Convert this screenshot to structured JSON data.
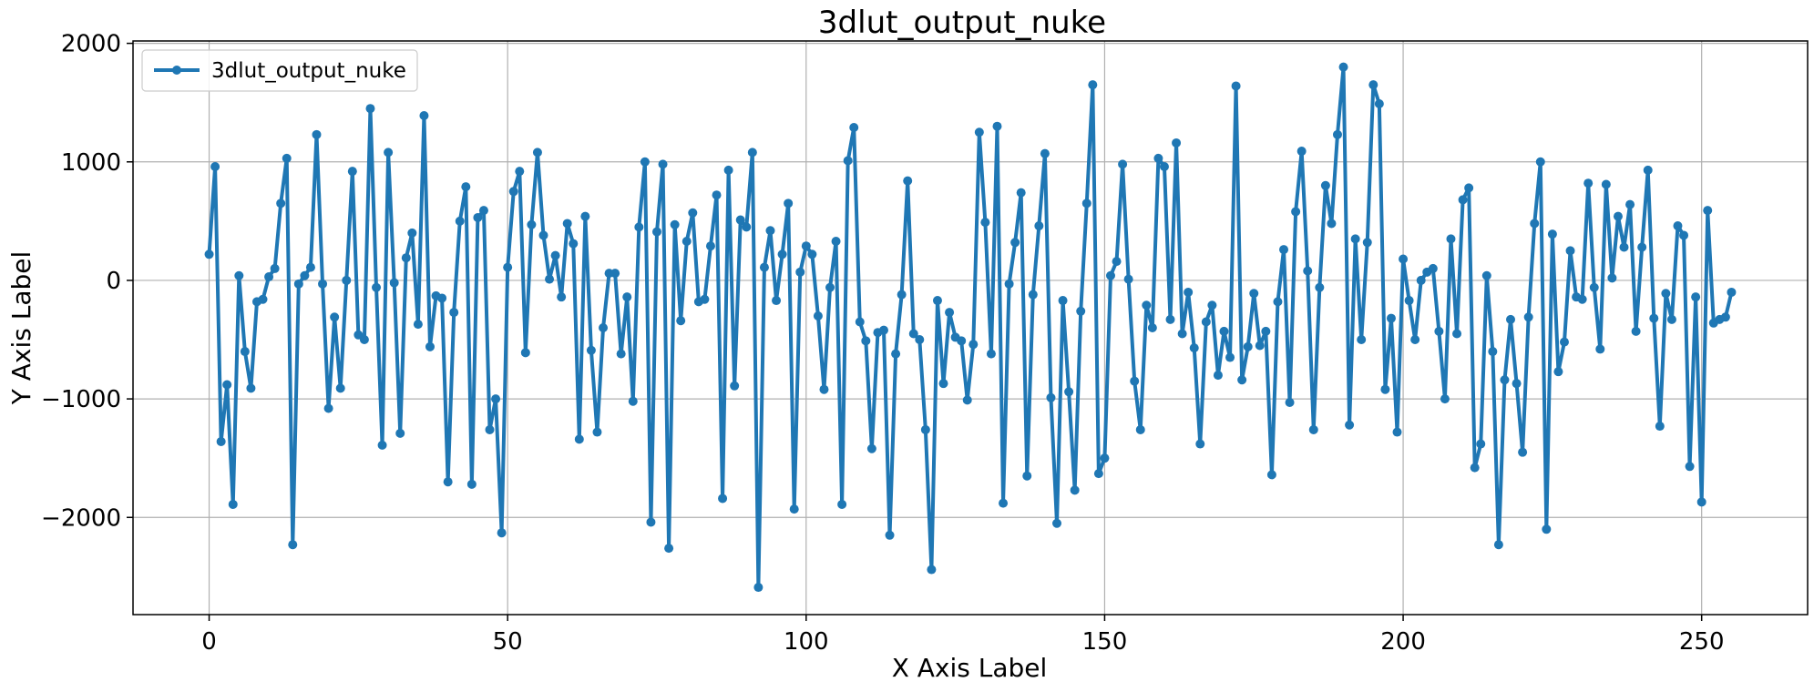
{
  "chart_data": {
    "type": "line",
    "title": "3dlut_output_nuke",
    "xlabel": "X Axis Label",
    "ylabel": "Y Axis Label",
    "xlim": [
      -12.75,
      267.75
    ],
    "ylim": [
      -2820,
      2020
    ],
    "xticks": [
      0,
      50,
      100,
      150,
      200,
      250
    ],
    "yticks": [
      -2000,
      -1000,
      0,
      1000,
      2000
    ],
    "ytick_labels": [
      "−2000",
      "−1000",
      "0",
      "1000",
      "2000"
    ],
    "grid": true,
    "legend_position": "top-left",
    "series": [
      {
        "name": "3dlut_output_nuke",
        "color": "#1f77b4",
        "marker": "circle",
        "values": [
          220,
          960,
          -1360,
          -880,
          -1890,
          40,
          -600,
          -910,
          -180,
          -160,
          30,
          100,
          650,
          1030,
          -2230,
          -30,
          40,
          110,
          1230,
          -30,
          -1080,
          -310,
          -910,
          0,
          920,
          -460,
          -500,
          1450,
          -60,
          -1390,
          1080,
          -20,
          -1290,
          190,
          400,
          -370,
          1390,
          -560,
          -130,
          -150,
          -1700,
          -270,
          500,
          790,
          -1720,
          530,
          590,
          -1260,
          -1000,
          -2130,
          110,
          750,
          920,
          -610,
          470,
          1080,
          380,
          10,
          210,
          -140,
          480,
          310,
          -1340,
          540,
          -590,
          -1280,
          -400,
          60,
          60,
          -620,
          -140,
          -1020,
          450,
          1000,
          -2040,
          410,
          980,
          -2260,
          470,
          -340,
          330,
          570,
          -180,
          -160,
          290,
          720,
          -1840,
          930,
          -890,
          510,
          450,
          1080,
          -2590,
          110,
          420,
          -170,
          220,
          650,
          -1930,
          70,
          290,
          220,
          -300,
          -920,
          -60,
          330,
          -1890,
          1010,
          1290,
          -350,
          -510,
          -1420,
          -440,
          -420,
          -2150,
          -620,
          -120,
          840,
          -450,
          -500,
          -1260,
          -2440,
          -170,
          -870,
          -270,
          -480,
          -510,
          -1010,
          -540,
          1250,
          490,
          -620,
          1300,
          -1880,
          -30,
          320,
          740,
          -1650,
          -120,
          460,
          1070,
          -990,
          -2050,
          -170,
          -940,
          -1770,
          -260,
          650,
          1650,
          -1630,
          -1500,
          40,
          160,
          980,
          10,
          -850,
          -1260,
          -210,
          -400,
          1030,
          960,
          -330,
          1160,
          -450,
          -100,
          -570,
          -1380,
          -350,
          -210,
          -800,
          -430,
          -650,
          1640,
          -840,
          -560,
          -110,
          -550,
          -430,
          -1640,
          -180,
          260,
          -1030,
          580,
          1090,
          80,
          -1260,
          -60,
          800,
          480,
          1230,
          1800,
          -1220,
          350,
          -500,
          320,
          1650,
          1490,
          -920,
          -320,
          -1280,
          180,
          -170,
          -500,
          0,
          70,
          100,
          -430,
          -1000,
          350,
          -450,
          680,
          780,
          -1580,
          -1380,
          40,
          -600,
          -2230,
          -840,
          -330,
          -870,
          -1450,
          -310,
          480,
          1000,
          -2100,
          390,
          -770,
          -520,
          250,
          -140,
          -160,
          820,
          -60,
          -580,
          810,
          20,
          540,
          280,
          640,
          -430,
          280,
          930,
          -320,
          -1230,
          -110,
          -330,
          460,
          380,
          -1570,
          -140,
          -1870,
          590,
          -360,
          -330,
          -310,
          -100
        ]
      }
    ]
  }
}
